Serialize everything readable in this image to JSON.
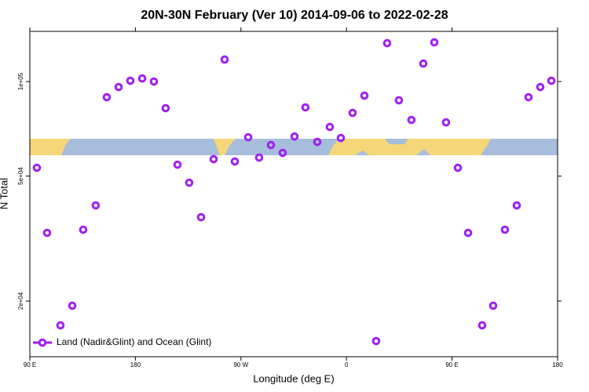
{
  "chart_data": {
    "type": "scatter",
    "title": "20N-30N February (Ver 10)   2014-09-06 to 2022-02-28",
    "xlabel": "Longitude (deg E)",
    "ylabel": "N Total",
    "xlim": [
      90,
      540
    ],
    "ylim": [
      13300,
      144500
    ],
    "log_y": true,
    "xticks": [
      {
        "value": 90,
        "label": "90 E"
      },
      180,
      {
        "value": 270,
        "label": "90 W"
      },
      {
        "value": 360,
        "label": "0"
      },
      {
        "value": 450,
        "label": "90 E"
      },
      {
        "value": 540,
        "label": "180"
      }
    ],
    "yticks": [
      {
        "value": 20000,
        "label": "2e+04"
      },
      {
        "value": 50000,
        "label": "5e+04"
      },
      {
        "value": 100000,
        "label": "1e+05"
      }
    ],
    "legend": "bottom left",
    "x": [
      96.0,
      104.7,
      116.1,
      126.2,
      135.5,
      146.2,
      155.6,
      165.7,
      175.7,
      185.8,
      195.8,
      205.8,
      215.9,
      225.9,
      236.0,
      246.7,
      256.1,
      264.8,
      276.2,
      285.5,
      295.6,
      305.6,
      315.7,
      325.0,
      335.1,
      345.8,
      355.2,
      365.2,
      375.3,
      385.3,
      394.7,
      404.7,
      415.4,
      425.5,
      434.9,
      444.9,
      455.0,
      463.7,
      475.7,
      485.1,
      495.1,
      505.2,
      515.2,
      525.3,
      534.7
    ],
    "series": [
      {
        "name": "Land (Nadir&Glint) and Ocean (Glint)",
        "color": "#a020f0",
        "values": [
          53130,
          32980,
          16740,
          19330,
          33750,
          40320,
          89150,
          96050,
          100600,
          102300,
          100000,
          82260,
          54370,
          47640,
          36990,
          56610,
          117500,
          55640,
          66490,
          57270,
          62800,
          59270,
          66870,
          82740,
          64240,
          71690,
          66110,
          79450,
          90170,
          14920,
          132500,
          87140,
          75470,
          114100,
          133300,
          74150,
          53130,
          32980,
          16740,
          19330,
          33750,
          40320,
          89150,
          96050,
          100600
        ]
      }
    ]
  }
}
